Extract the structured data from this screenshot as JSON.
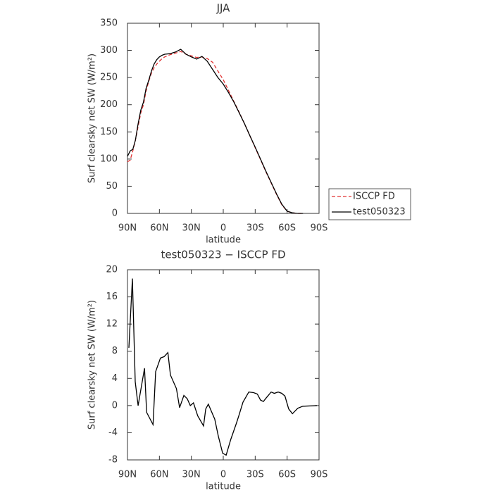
{
  "chart_data": [
    {
      "type": "line",
      "title": "JJA",
      "xlabel": "latitude",
      "ylabel": "Surf clearsky net SW (W/m²)",
      "x": [
        90,
        87.5,
        85,
        82.5,
        80,
        77.5,
        75,
        72.5,
        70,
        67.5,
        65,
        62.5,
        60,
        57.5,
        55,
        50,
        45,
        40,
        35,
        30,
        25,
        20,
        15,
        10,
        5,
        0,
        -5,
        -10,
        -15,
        -20,
        -25,
        -30,
        -35,
        -40,
        -45,
        -50,
        -55,
        -60,
        -65,
        -70,
        -75
      ],
      "series": [
        {
          "name": "ISCCP FD",
          "color": "#e03030",
          "line_style": "dashed",
          "values": [
            95,
            98,
            115,
            135,
            160,
            185,
            200,
            225,
            243,
            258,
            268,
            275,
            280,
            285,
            288,
            292,
            295,
            298,
            293,
            290,
            287,
            288,
            285,
            278,
            262,
            246,
            226,
            206,
            186,
            165,
            143,
            121,
            99,
            77,
            56,
            35,
            16,
            4,
            1,
            0,
            0
          ]
        },
        {
          "name": "test050323",
          "color": "#000000",
          "line_style": "solid",
          "values": [
            105,
            115,
            118,
            135,
            165,
            190,
            205,
            230,
            245,
            262,
            275,
            283,
            288,
            291,
            293,
            294,
            297,
            302,
            293,
            288,
            284,
            289,
            280,
            265,
            250,
            238,
            222,
            205,
            185,
            165,
            143,
            122,
            100,
            78,
            57,
            36,
            17,
            4,
            1,
            0,
            0
          ]
        }
      ],
      "xlim": [
        90,
        -90
      ],
      "xticks": [
        {
          "value": 90,
          "label": "90N"
        },
        {
          "value": 60,
          "label": "60N"
        },
        {
          "value": 30,
          "label": "30N"
        },
        0,
        {
          "value": -30,
          "label": "30S"
        },
        {
          "value": -60,
          "label": "60S"
        },
        {
          "value": -90,
          "label": "90S"
        }
      ],
      "ylim": [
        0,
        350
      ],
      "yticks": [
        0,
        50,
        100,
        150,
        200,
        250,
        300,
        350
      ],
      "legend": "right"
    },
    {
      "type": "line",
      "title": "test050323 − ISCCP FD",
      "xlabel": "latitude",
      "ylabel": "Surf clearsky net SW (W/m²)",
      "x": [
        88.7,
        85.4,
        82.7,
        80,
        74,
        72,
        66,
        63.5,
        59,
        55.6,
        52,
        49.6,
        44,
        41,
        37,
        33.8,
        31,
        28,
        24,
        18.5,
        16.5,
        14,
        8,
        4.6,
        0.6,
        -2.7,
        -7,
        -12.6,
        -14.6,
        -18.5,
        -24,
        -28.5,
        -32,
        -35,
        -37.7,
        -39.7,
        -45,
        -48,
        -51.6,
        -55,
        -58,
        -61.5,
        -65,
        -70,
        -74.8,
        -88
      ],
      "series": [
        {
          "name": "test050323 − ISCCP FD",
          "color": "#000000",
          "line_style": "solid",
          "values": [
            8.5,
            18.7,
            3.5,
            0,
            5.5,
            -1,
            -2.8,
            5,
            7,
            7.2,
            7.8,
            4.5,
            2.5,
            -0.3,
            1.5,
            1,
            0,
            0.4,
            -1.5,
            -3,
            -0.5,
            0.2,
            -2,
            -4.5,
            -7,
            -7.3,
            -5,
            -2.5,
            -1.5,
            0.5,
            2,
            1.9,
            1.7,
            0.8,
            0.6,
            1,
            2,
            1.8,
            2,
            1.8,
            1.4,
            -0.5,
            -1.2,
            -0.4,
            -0.1,
            0
          ]
        }
      ],
      "xlim": [
        90,
        -90
      ],
      "xticks": [
        {
          "value": 90,
          "label": "90N"
        },
        {
          "value": 60,
          "label": "60N"
        },
        {
          "value": 30,
          "label": "30N"
        },
        0,
        {
          "value": -30,
          "label": "30S"
        },
        {
          "value": -60,
          "label": "60S"
        },
        {
          "value": -90,
          "label": "90S"
        }
      ],
      "ylim": [
        -8,
        20
      ],
      "yticks": [
        -8,
        -4,
        0,
        4,
        8,
        12,
        16,
        20
      ]
    }
  ]
}
